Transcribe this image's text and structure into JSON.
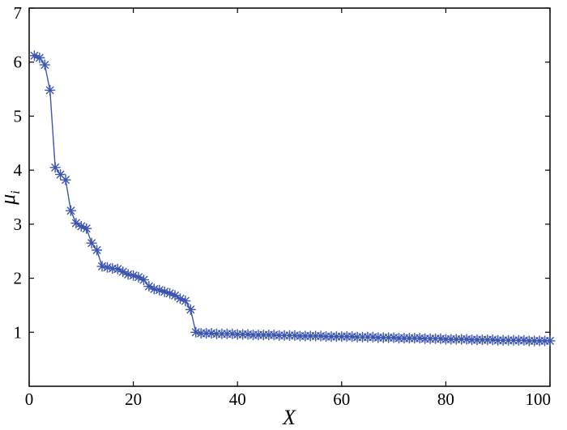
{
  "chart_data": {
    "type": "line",
    "title": "",
    "xlabel": "X",
    "ylabel": "μ",
    "ylabel_subscript": "i",
    "xlim": [
      0,
      100
    ],
    "ylim": [
      0,
      7
    ],
    "xticks": [
      0,
      20,
      40,
      60,
      80,
      100
    ],
    "yticks": [
      1,
      2,
      3,
      4,
      5,
      6,
      7
    ],
    "grid": false,
    "legend": "none",
    "marker": "asterisk",
    "series_color": "#3b55b0",
    "series": [
      {
        "x": [
          1,
          2,
          3,
          4,
          5,
          6,
          7,
          8,
          9,
          10,
          11,
          12,
          13,
          14,
          15,
          16,
          17,
          18,
          19,
          20,
          21,
          22,
          23,
          24,
          25,
          26,
          27,
          28,
          29,
          30,
          31,
          32,
          33,
          34,
          35,
          36,
          37,
          38,
          39,
          40,
          41,
          42,
          43,
          44,
          45,
          46,
          47,
          48,
          49,
          50,
          51,
          52,
          53,
          54,
          55,
          56,
          57,
          58,
          59,
          60,
          61,
          62,
          63,
          64,
          65,
          66,
          67,
          68,
          69,
          70,
          71,
          72,
          73,
          74,
          75,
          76,
          77,
          78,
          79,
          80,
          81,
          82,
          83,
          84,
          85,
          86,
          87,
          88,
          89,
          90,
          91,
          92,
          93,
          94,
          95,
          96,
          97,
          98,
          99,
          100
        ],
        "values": [
          6.12,
          6.08,
          5.95,
          5.48,
          4.05,
          3.92,
          3.82,
          3.25,
          3.02,
          2.96,
          2.92,
          2.65,
          2.52,
          2.22,
          2.2,
          2.18,
          2.17,
          2.12,
          2.07,
          2.05,
          2.02,
          1.97,
          1.85,
          1.8,
          1.78,
          1.75,
          1.72,
          1.68,
          1.62,
          1.58,
          1.42,
          1.0,
          0.98,
          0.98,
          0.98,
          0.97,
          0.97,
          0.97,
          0.97,
          0.96,
          0.96,
          0.96,
          0.95,
          0.95,
          0.95,
          0.95,
          0.95,
          0.94,
          0.94,
          0.94,
          0.94,
          0.93,
          0.93,
          0.93,
          0.93,
          0.93,
          0.92,
          0.92,
          0.92,
          0.92,
          0.92,
          0.92,
          0.91,
          0.91,
          0.91,
          0.91,
          0.9,
          0.9,
          0.9,
          0.9,
          0.89,
          0.89,
          0.89,
          0.89,
          0.89,
          0.88,
          0.88,
          0.88,
          0.88,
          0.87,
          0.87,
          0.87,
          0.87,
          0.87,
          0.86,
          0.86,
          0.86,
          0.86,
          0.86,
          0.85,
          0.85,
          0.85,
          0.85,
          0.85,
          0.85,
          0.84,
          0.84,
          0.84,
          0.84,
          0.84
        ]
      }
    ]
  }
}
